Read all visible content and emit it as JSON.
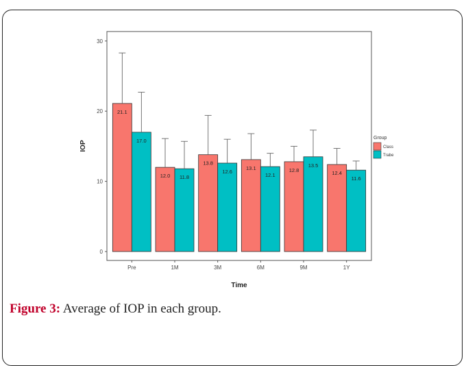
{
  "figure": {
    "caption_label": "Figure 3:",
    "caption_text": " Average of IOP in each group."
  },
  "chart_data": {
    "type": "bar",
    "xlabel": "Time",
    "ylabel": "IOP",
    "ylim": [
      0,
      31
    ],
    "yticks": [
      0,
      10,
      20,
      30
    ],
    "grid": false,
    "categories": [
      "Pre",
      "1M",
      "3M",
      "6M",
      "9M",
      "1Y"
    ],
    "legend": {
      "title": "Group",
      "placement": "right"
    },
    "series": [
      {
        "name": "Class",
        "color": "#F8766D",
        "values": [
          21.1,
          12.0,
          13.8,
          13.1,
          12.8,
          12.4
        ],
        "labels": [
          "21.1",
          "12.0",
          "13.8",
          "13.1",
          "12.8",
          "12.4"
        ],
        "error_upper": [
          28.3,
          16.1,
          19.4,
          16.8,
          15.0,
          14.7
        ]
      },
      {
        "name": "Trabe",
        "color": "#00BFC4",
        "values": [
          17.0,
          11.8,
          12.6,
          12.1,
          13.5,
          11.6
        ],
        "labels": [
          "17.0",
          "11.8",
          "12.6",
          "12.1",
          "13.5",
          "11.6"
        ],
        "error_upper": [
          22.7,
          15.7,
          16.0,
          14.0,
          17.3,
          12.9
        ]
      }
    ]
  }
}
